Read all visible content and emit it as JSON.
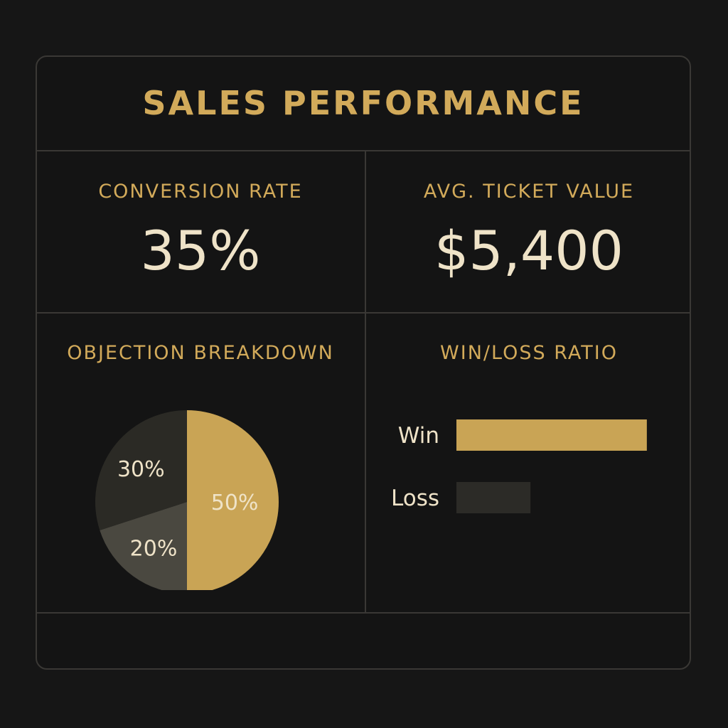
{
  "title": "SALES PERFORMANCE",
  "kpis": {
    "conversion_rate": {
      "label": "CONVERSION RATE",
      "value": "35%"
    },
    "avg_ticket_value": {
      "label": "AVG. TICKET VALUE",
      "value": "$5,400"
    }
  },
  "chart_data": [
    {
      "type": "pie",
      "title": "OBJECTION BREAKDOWN",
      "slices": [
        {
          "label": "50%",
          "value": 50,
          "color": "#c9a455"
        },
        {
          "label": "20%",
          "value": 20,
          "color": "#4a4840"
        },
        {
          "label": "30%",
          "value": 30,
          "color": "#2b2a25"
        }
      ]
    },
    {
      "type": "bar",
      "title": "WIN/LOSS RATIO",
      "orientation": "horizontal",
      "categories": [
        "Win",
        "Loss"
      ],
      "values": [
        72,
        28
      ],
      "colors": [
        "#c9a455",
        "#2c2b27"
      ]
    }
  ]
}
